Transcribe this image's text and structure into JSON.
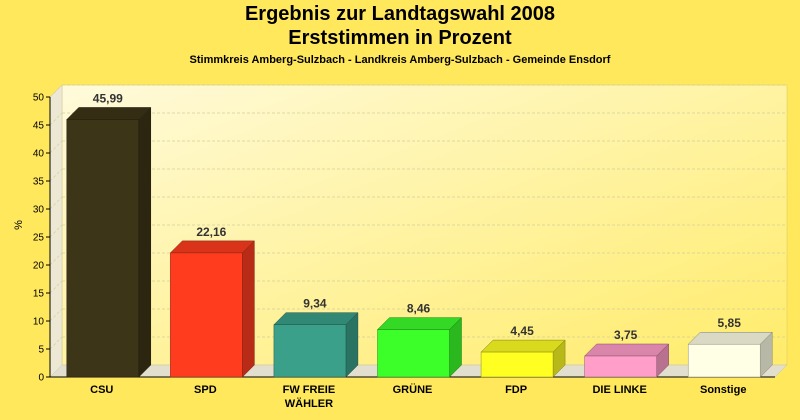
{
  "chart_data": {
    "type": "bar",
    "title": "Ergebnis zur Landtagswahl 2008",
    "title2": "Erststimmen in Prozent",
    "subtitle": "Stimmkreis Amberg-Sulzbach - Landkreis Amberg-Sulzbach - Gemeinde Ensdorf",
    "ylabel": "%",
    "ylim": [
      0,
      50
    ],
    "yticks": [
      0,
      5,
      10,
      15,
      20,
      25,
      30,
      35,
      40,
      45,
      50
    ],
    "grid": true,
    "categories": [
      "CSU",
      "SPD",
      "FW FREIE WÄHLER",
      "GRÜNE",
      "FDP",
      "DIE LINKE",
      "Sonstige"
    ],
    "category_lines": [
      [
        "CSU"
      ],
      [
        "SPD"
      ],
      [
        "FW FREIE",
        "WÄHLER"
      ],
      [
        "GRÜNE"
      ],
      [
        "FDP"
      ],
      [
        "DIE LINKE"
      ],
      [
        "Sonstige"
      ]
    ],
    "values": [
      45.99,
      22.16,
      9.34,
      8.46,
      4.45,
      3.75,
      5.85
    ],
    "value_labels": [
      "45,99",
      "22,16",
      "9,34",
      "8,46",
      "4,45",
      "3,75",
      "5,85"
    ],
    "colors": [
      "#3d3518",
      "#ff3c1e",
      "#3aa089",
      "#3cff2a",
      "#ffff22",
      "#ff9ec8",
      "#ffffe6"
    ]
  }
}
